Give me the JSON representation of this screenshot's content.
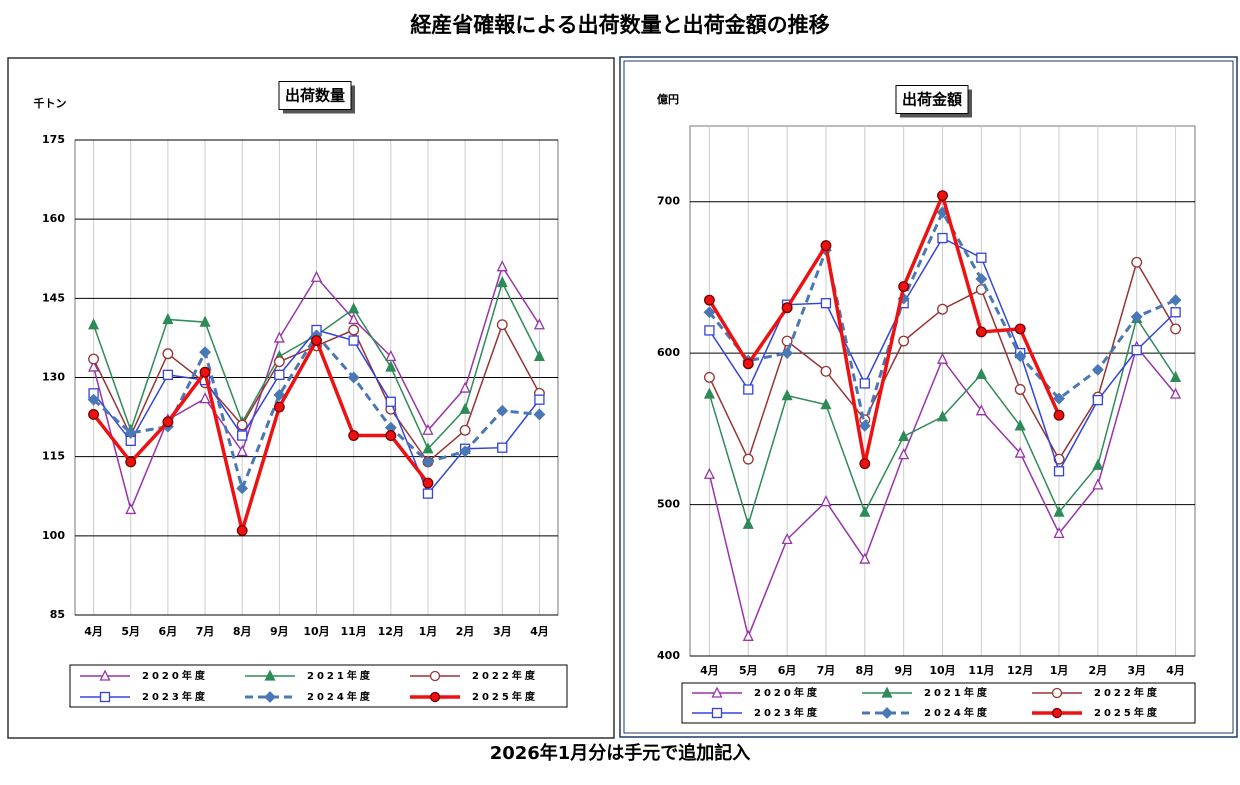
{
  "title": "経産省確報による出荷数量と出荷金額の推移",
  "note": "2026年1月分は手元で追加記入",
  "chart_data": [
    {
      "type": "line",
      "title": "出荷数量",
      "y_label": "千トン",
      "categories": [
        "4月",
        "5月",
        "6月",
        "7月",
        "8月",
        "9月",
        "10月",
        "11月",
        "12月",
        "1月",
        "2月",
        "3月",
        "4月"
      ],
      "ylim": [
        85,
        175
      ],
      "yticks": [
        85,
        100,
        115,
        130,
        145,
        160,
        175
      ],
      "grid": true,
      "series": [
        {
          "name": "2020年度",
          "color": "#9933aa",
          "marker": "triangle-open",
          "dashed": false,
          "line_width": 1.5,
          "values": [
            132,
            105,
            122,
            126,
            116,
            137.5,
            149,
            141,
            134,
            120,
            128,
            151,
            140
          ]
        },
        {
          "name": "2021年度",
          "color": "#2e8b57",
          "marker": "triangle-filled",
          "dashed": false,
          "line_width": 1.5,
          "values": [
            140,
            120,
            141,
            140.5,
            121.5,
            134,
            138,
            143,
            132,
            116.5,
            124,
            148,
            134
          ]
        },
        {
          "name": "2022年度",
          "color": "#993333",
          "marker": "circle-open",
          "dashed": false,
          "line_width": 1.5,
          "values": [
            133.5,
            119,
            134.5,
            129,
            121,
            133,
            136,
            139,
            124,
            114,
            120,
            140,
            127
          ]
        },
        {
          "name": "2023年度",
          "color": "#3344dd",
          "marker": "square-open",
          "dashed": false,
          "line_width": 1.5,
          "values": [
            127,
            118,
            130.5,
            129.5,
            119,
            130.5,
            139,
            137,
            125.4,
            108,
            116.5,
            116.7,
            125.8
          ]
        },
        {
          "name": "2024年度",
          "color": "#4a78b5",
          "marker": "diamond-filled",
          "dashed": true,
          "line_width": 3,
          "values": [
            125.8,
            119.5,
            120.7,
            134.8,
            109,
            126.7,
            138,
            130,
            120.5,
            114,
            116,
            123.7,
            123
          ]
        },
        {
          "name": "2025年度",
          "color": "#ee1111",
          "marker": "circle-filled",
          "dashed": false,
          "line_width": 3.5,
          "values": [
            123,
            114,
            121.6,
            131,
            101,
            124.4,
            137,
            119,
            119,
            110,
            null,
            null,
            null
          ]
        }
      ]
    },
    {
      "type": "line",
      "title": "出荷金額",
      "y_label": "億円",
      "categories": [
        "4月",
        "5月",
        "6月",
        "7月",
        "8月",
        "9月",
        "10月",
        "11月",
        "12月",
        "1月",
        "2月",
        "3月",
        "4月"
      ],
      "ylim": [
        400,
        750
      ],
      "yticks": [
        400,
        500,
        600,
        700
      ],
      "grid": true,
      "series": [
        {
          "name": "2020年度",
          "color": "#9933aa",
          "marker": "triangle-open",
          "dashed": false,
          "line_width": 1.5,
          "values": [
            520,
            413,
            477,
            502,
            464,
            533,
            596,
            562,
            534,
            481,
            513,
            604,
            573
          ]
        },
        {
          "name": "2021年度",
          "color": "#2e8b57",
          "marker": "triangle-filled",
          "dashed": false,
          "line_width": 1.5,
          "values": [
            573,
            487,
            572,
            566,
            495,
            545,
            558,
            586,
            552,
            495,
            526,
            623,
            584
          ]
        },
        {
          "name": "2022年度",
          "color": "#993333",
          "marker": "circle-open",
          "dashed": false,
          "line_width": 1.5,
          "values": [
            584,
            530,
            608,
            588,
            556,
            608,
            629,
            642,
            576,
            530,
            571,
            660,
            616
          ]
        },
        {
          "name": "2023年度",
          "color": "#3344dd",
          "marker": "square-open",
          "dashed": false,
          "line_width": 1.5,
          "values": [
            615,
            576,
            632,
            633,
            580,
            633,
            676,
            663,
            600,
            522,
            569,
            602,
            627
          ]
        },
        {
          "name": "2024年度",
          "color": "#4a78b5",
          "marker": "diamond-filled",
          "dashed": true,
          "line_width": 3,
          "values": [
            627,
            595,
            600,
            668,
            552,
            636,
            693,
            649,
            598,
            570,
            589,
            624,
            635
          ]
        },
        {
          "name": "2025年度",
          "color": "#ee1111",
          "marker": "circle-filled",
          "dashed": false,
          "line_width": 3.5,
          "values": [
            635,
            593,
            630,
            671,
            527,
            644,
            704,
            614,
            616,
            559,
            null,
            null,
            null
          ]
        }
      ]
    }
  ]
}
